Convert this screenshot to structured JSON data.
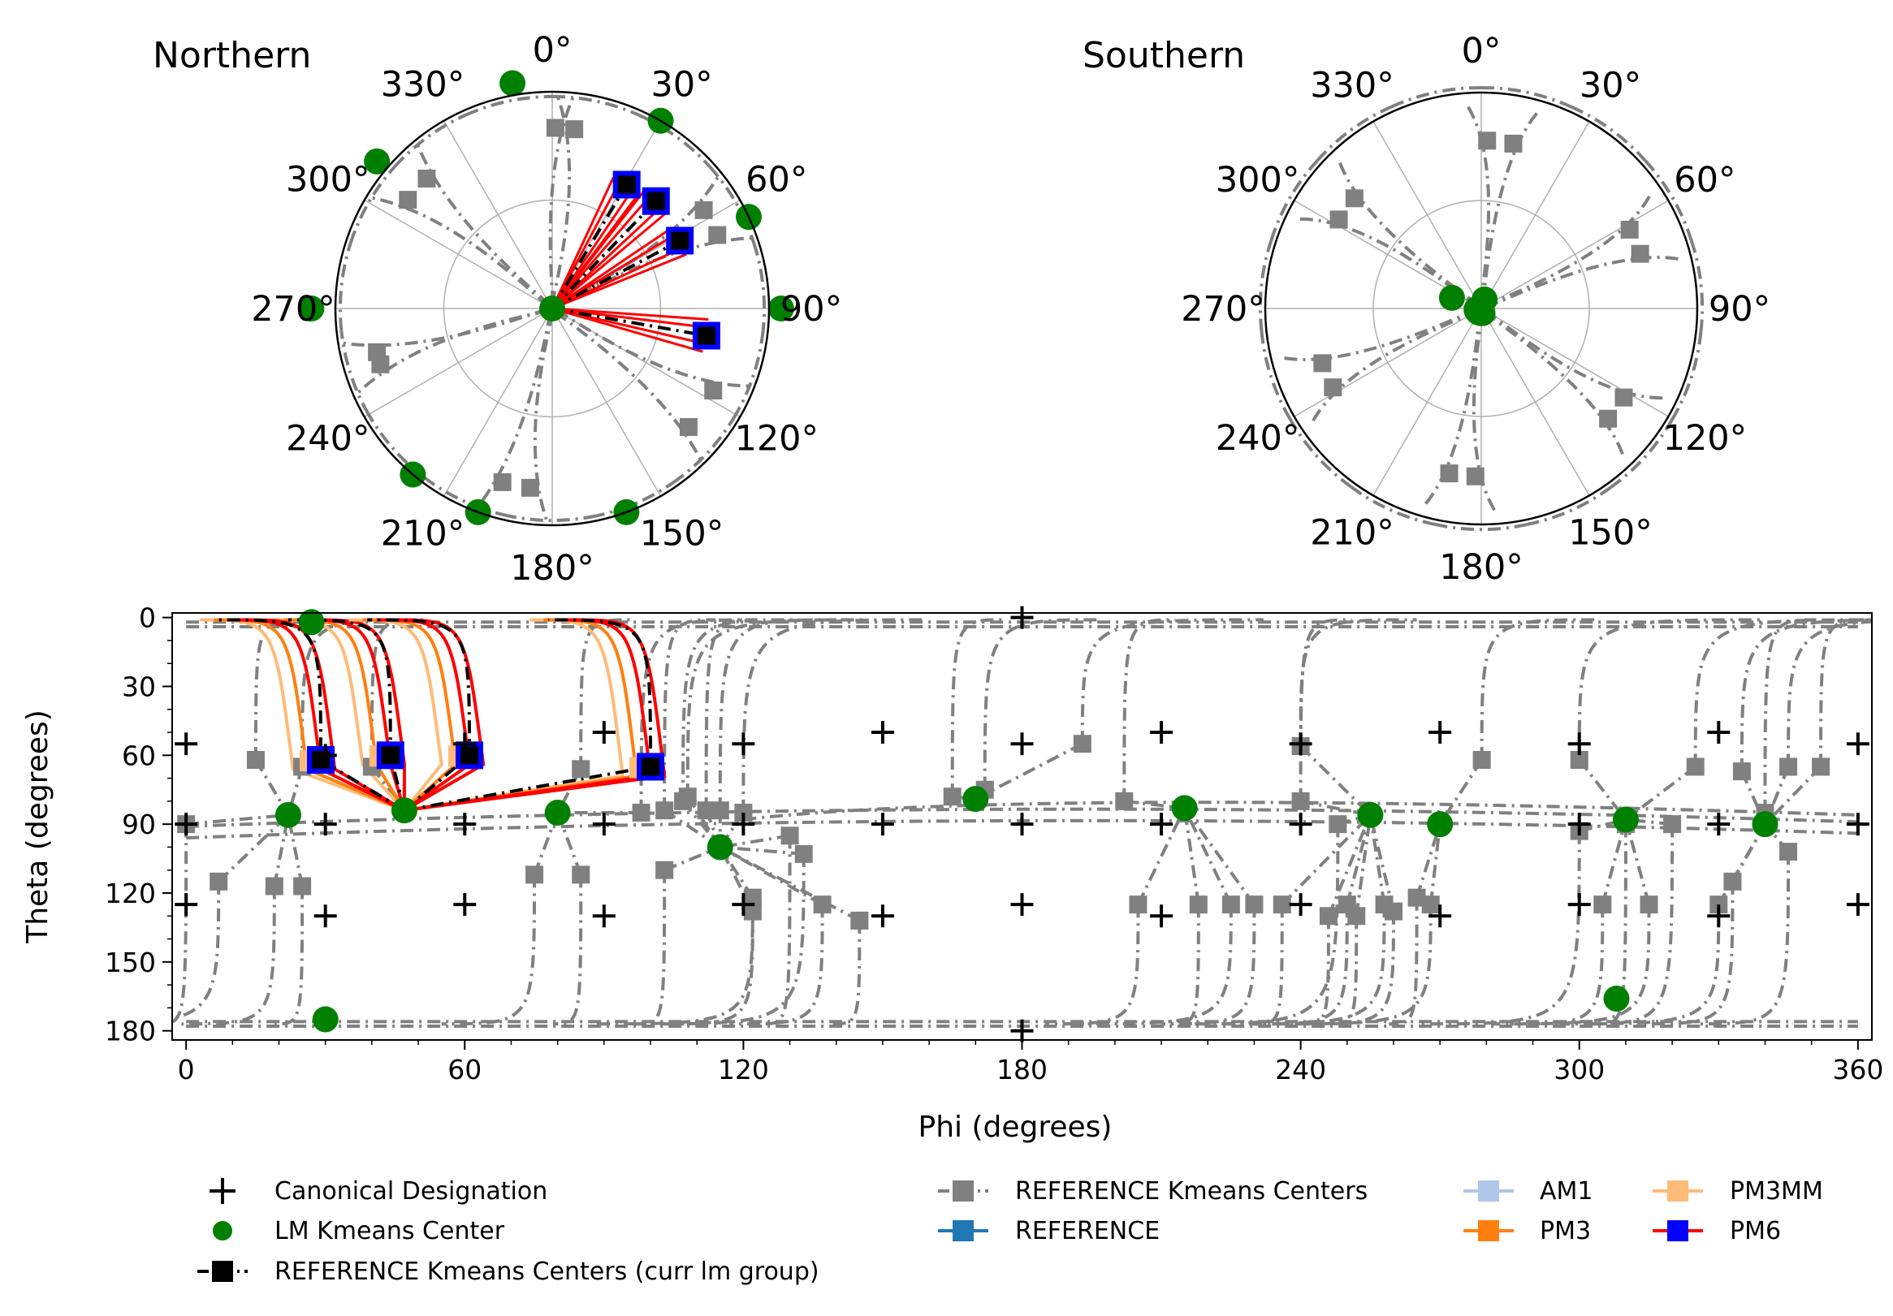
{
  "polar_titles": {
    "north": "Northern",
    "south": "Southern"
  },
  "polar_angle_labels": [
    "0°",
    "30°",
    "60°",
    "90°",
    "120°",
    "150°",
    "180°",
    "210°",
    "240°",
    "270°",
    "300°",
    "330°"
  ],
  "colors": {
    "canonical": "#000000",
    "lm_center": "#008000",
    "reference_gray": "#808080",
    "reference_curr": "#000000",
    "reference": "#1f77b4",
    "am1": "#aec7e8",
    "pm3": "#ff7f0e",
    "pm3mm": "#ffbb78",
    "pm6": "#ff0000",
    "pm6_marker": "#0000ff",
    "grid": "#b0b0b0"
  },
  "legend": {
    "canonical": "Canonical Designation",
    "lm_center": "LM Kmeans Center",
    "ref_curr": "REFERENCE Kmeans Centers (curr lm group)",
    "ref_centers": "REFERENCE Kmeans Centers",
    "reference": "REFERENCE",
    "am1": "AM1",
    "pm3": "PM3",
    "pm3mm": "PM3MM",
    "pm6": "PM6"
  },
  "chart_data": [
    {
      "type": "scatter",
      "projection": "polar",
      "title": "Northern",
      "angle_ticks_deg": [
        0,
        30,
        60,
        90,
        120,
        150,
        180,
        210,
        240,
        270,
        300,
        330
      ],
      "angle_direction": "clockwise from top",
      "series": [
        {
          "name": "LM Kmeans Center",
          "points": [
            [
              0,
              0
            ],
            [
              350,
              95
            ],
            [
              310,
              95
            ],
            [
              270,
              100
            ],
            [
              90,
              95
            ],
            [
              65,
              90
            ],
            [
              30,
              90
            ],
            [
              200,
              90
            ],
            [
              160,
              90
            ],
            [
              220,
              90
            ]
          ]
        },
        {
          "name": "REFERENCE Kmeans Centers (curr lm group)",
          "points": [
            [
              100,
              65
            ],
            [
              44,
              62
            ],
            [
              31,
              60
            ],
            [
              62,
              60
            ]
          ]
        }
      ]
    },
    {
      "type": "scatter",
      "projection": "polar",
      "title": "Southern",
      "angle_ticks_deg": [
        0,
        30,
        60,
        90,
        120,
        150,
        180,
        210,
        240,
        270,
        300,
        330
      ],
      "angle_direction": "clockwise from top",
      "series": [
        {
          "name": "LM Kmeans Center",
          "points": [
            [
              290,
              167
            ],
            [
              20,
              176
            ],
            [
              260,
              178
            ],
            [
              165,
              178
            ],
            [
              215,
              178
            ],
            [
              245,
              178
            ]
          ]
        }
      ]
    },
    {
      "type": "scatter",
      "title": "",
      "xlabel": "Phi (degrees)",
      "ylabel": "Theta (degrees)",
      "xlim": [
        -3,
        363
      ],
      "ylim": [
        184,
        -2
      ],
      "x_ticks": [
        0,
        60,
        120,
        180,
        240,
        300,
        360
      ],
      "y_ticks": [
        0,
        30,
        60,
        90,
        120,
        150,
        180
      ],
      "grid": false,
      "legend_position": "below plot",
      "series": [
        {
          "name": "Canonical Designation",
          "marker": "+",
          "points": [
            [
              0,
              55
            ],
            [
              30,
              60
            ],
            [
              60,
              55
            ],
            [
              90,
              50
            ],
            [
              120,
              55
            ],
            [
              150,
              50
            ],
            [
              180,
              55
            ],
            [
              210,
              50
            ],
            [
              240,
              55
            ],
            [
              270,
              50
            ],
            [
              300,
              55
            ],
            [
              330,
              50
            ],
            [
              360,
              55
            ],
            [
              0,
              90
            ],
            [
              30,
              90
            ],
            [
              60,
              90
            ],
            [
              90,
              90
            ],
            [
              120,
              90
            ],
            [
              150,
              90
            ],
            [
              180,
              90
            ],
            [
              210,
              90
            ],
            [
              240,
              90
            ],
            [
              270,
              90
            ],
            [
              300,
              90
            ],
            [
              330,
              90
            ],
            [
              360,
              90
            ],
            [
              0,
              125
            ],
            [
              30,
              130
            ],
            [
              60,
              125
            ],
            [
              90,
              130
            ],
            [
              120,
              125
            ],
            [
              150,
              130
            ],
            [
              180,
              125
            ],
            [
              210,
              130
            ],
            [
              240,
              125
            ],
            [
              270,
              130
            ],
            [
              300,
              125
            ],
            [
              330,
              130
            ],
            [
              360,
              125
            ],
            [
              180,
              0
            ],
            [
              180,
              180
            ]
          ]
        },
        {
          "name": "LM Kmeans Center",
          "marker": "o",
          "points": [
            [
              27,
              2
            ],
            [
              47,
              84
            ],
            [
              22,
              86
            ],
            [
              80,
              85
            ],
            [
              115,
              100
            ],
            [
              170,
              79
            ],
            [
              215,
              83
            ],
            [
              255,
              86
            ],
            [
              270,
              90
            ],
            [
              310,
              88
            ],
            [
              340,
              90
            ],
            [
              308,
              166
            ],
            [
              30,
              175
            ]
          ]
        },
        {
          "name": "REFERENCE Kmeans Centers (curr lm group)",
          "marker": "s",
          "points": [
            [
              100,
              65
            ],
            [
              44,
              60
            ],
            [
              29,
              62
            ],
            [
              61,
              60
            ]
          ]
        },
        {
          "name": "REFERENCE Kmeans Centers",
          "marker": "s",
          "points": [
            [
              15,
              62
            ],
            [
              25,
              65
            ],
            [
              0,
              90
            ],
            [
              7,
              115
            ],
            [
              19,
              117
            ],
            [
              25,
              117
            ],
            [
              40,
              65
            ],
            [
              75,
              112
            ],
            [
              85,
              112
            ],
            [
              85,
              66
            ],
            [
              98,
              85
            ],
            [
              103,
              110
            ],
            [
              103,
              84
            ],
            [
              107,
              80
            ],
            [
              108,
              78
            ],
            [
              112,
              84
            ],
            [
              115,
              84
            ],
            [
              120,
              85
            ],
            [
              122,
              122
            ],
            [
              122,
              128
            ],
            [
              130,
              95
            ],
            [
              133,
              103
            ],
            [
              137,
              125
            ],
            [
              145,
              132
            ],
            [
              165,
              78
            ],
            [
              172,
              75
            ],
            [
              193,
              55
            ],
            [
              202,
              80
            ],
            [
              205,
              125
            ],
            [
              218,
              125
            ],
            [
              225,
              125
            ],
            [
              230,
              125
            ],
            [
              236,
              125
            ],
            [
              240,
              80
            ],
            [
              240,
              56
            ],
            [
              246,
              130
            ],
            [
              248,
              90
            ],
            [
              250,
              125
            ],
            [
              252,
              130
            ],
            [
              258,
              125
            ],
            [
              260,
              128
            ],
            [
              265,
              122
            ],
            [
              268,
              125
            ],
            [
              279,
              62
            ],
            [
              300,
              62
            ],
            [
              300,
              93
            ],
            [
              305,
              125
            ],
            [
              310,
              90
            ],
            [
              315,
              125
            ],
            [
              320,
              90
            ],
            [
              325,
              65
            ],
            [
              330,
              125
            ],
            [
              333,
              115
            ],
            [
              335,
              67
            ],
            [
              340,
              85
            ],
            [
              345,
              102
            ],
            [
              345,
              65
            ],
            [
              352,
              65
            ]
          ]
        }
      ]
    }
  ]
}
